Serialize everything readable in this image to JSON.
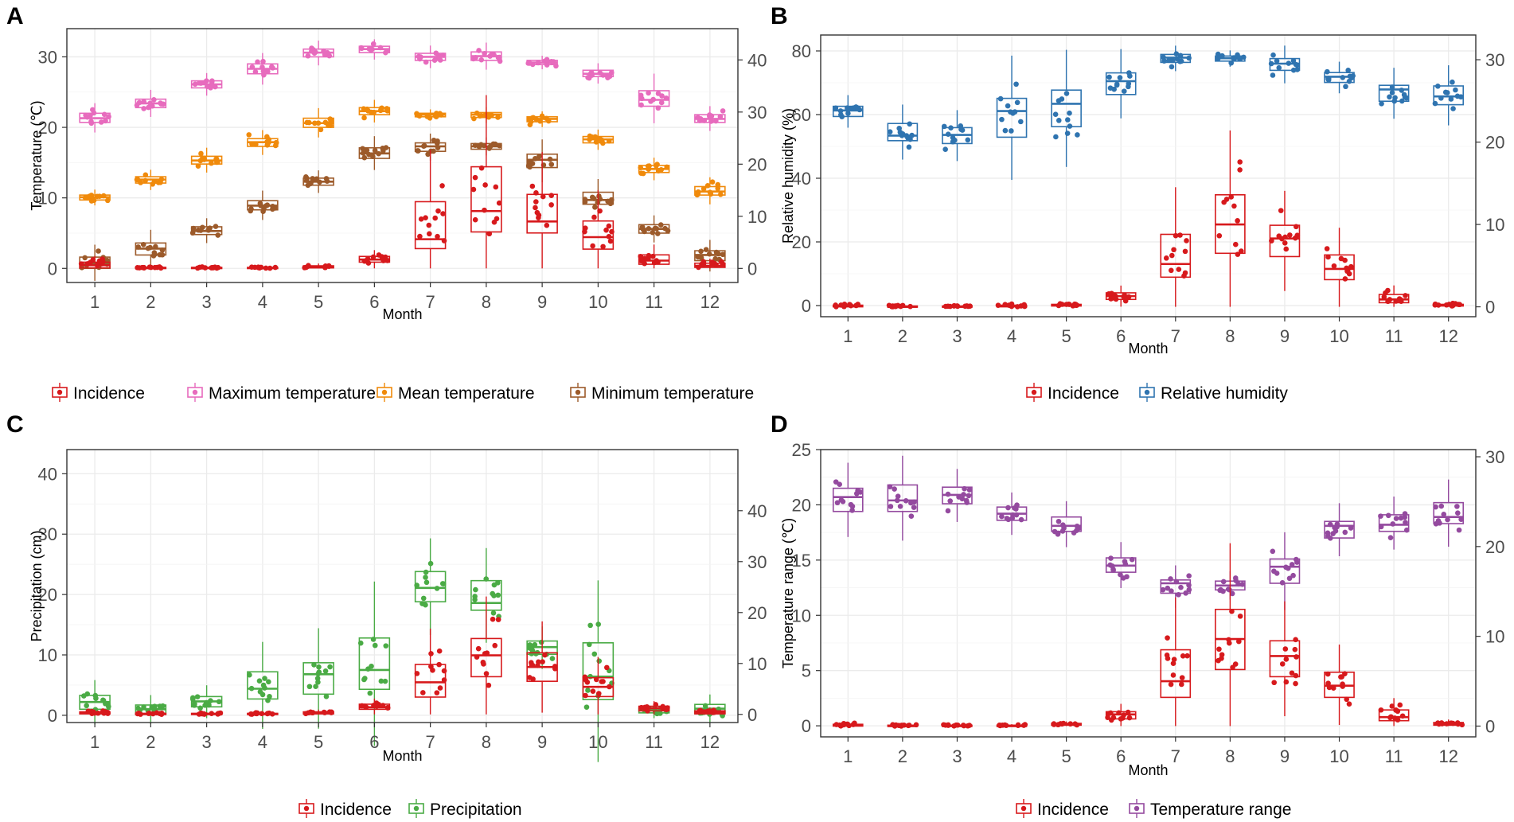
{
  "colors": {
    "incidence": "#d7191c",
    "max_temp": "#e76bbd",
    "mean_temp": "#f08a0b",
    "min_temp": "#9c5a2a",
    "humidity": "#2f74b0",
    "precip": "#4aab45",
    "temp_range": "#944a9f"
  },
  "chart_data": [
    {
      "panel": "A",
      "type": "box",
      "xlabel": "Month",
      "ylabel": "Temperature (℃)",
      "categories": [
        "1",
        "2",
        "3",
        "4",
        "5",
        "6",
        "7",
        "8",
        "9",
        "10",
        "11",
        "12"
      ],
      "ylim": [
        -2,
        34
      ],
      "yticks": [
        0,
        10,
        20,
        30
      ],
      "y2lim": [
        -2.7,
        46
      ],
      "y2ticks": [
        0,
        10,
        20,
        30,
        40
      ],
      "legend": [
        "Incidence",
        "Maximum temperature",
        "Mean temperature",
        "Minimum temperature"
      ],
      "series": [
        {
          "name": "Maximum temperature",
          "color_key": "max_temp",
          "axis": "left",
          "median": [
            21.3,
            23.4,
            26.1,
            28.3,
            30.6,
            31.1,
            30.0,
            30.1,
            29.2,
            27.6,
            23.9,
            21.2
          ],
          "q1": [
            20.7,
            22.8,
            25.6,
            27.6,
            30.0,
            30.6,
            29.5,
            29.5,
            28.9,
            27.2,
            23.0,
            20.7
          ],
          "q3": [
            22.0,
            24.0,
            26.6,
            29.0,
            31.1,
            31.5,
            30.5,
            30.7,
            29.5,
            28.1,
            25.2,
            21.8
          ]
        },
        {
          "name": "Mean temperature",
          "color_key": "mean_temp",
          "axis": "left",
          "median": [
            10.1,
            12.6,
            15.3,
            17.9,
            20.6,
            22.3,
            21.8,
            21.8,
            21.2,
            18.3,
            14.1,
            10.9
          ],
          "q1": [
            9.7,
            12.1,
            14.8,
            17.3,
            20.0,
            21.8,
            21.5,
            21.4,
            20.8,
            17.8,
            13.6,
            10.4
          ],
          "q3": [
            10.4,
            13.0,
            15.9,
            18.4,
            21.3,
            22.8,
            22.0,
            22.1,
            21.5,
            18.7,
            14.6,
            11.6
          ]
        },
        {
          "name": "Minimum temperature",
          "color_key": "min_temp",
          "axis": "left",
          "median": [
            0.6,
            2.8,
            5.3,
            8.9,
            12.3,
            16.3,
            17.3,
            17.3,
            15.4,
            9.7,
            5.6,
            1.9
          ],
          "q1": [
            0.0,
            1.9,
            4.8,
            8.3,
            11.8,
            15.6,
            16.6,
            16.9,
            14.3,
            9.1,
            5.0,
            1.1
          ],
          "q3": [
            1.6,
            3.6,
            5.9,
            9.6,
            12.8,
            17.1,
            17.8,
            17.7,
            16.2,
            10.8,
            6.2,
            2.5
          ]
        },
        {
          "name": "Incidence",
          "color_key": "incidence",
          "axis": "right",
          "median": [
            0.6,
            0.1,
            0.1,
            0.1,
            0.3,
            1.7,
            5.6,
            11.0,
            9.0,
            6.0,
            1.5,
            0.5
          ],
          "q1": [
            0.1,
            0.0,
            0.0,
            0.0,
            0.1,
            1.2,
            3.8,
            7.0,
            6.8,
            3.7,
            0.8,
            0.2
          ],
          "q3": [
            1.2,
            0.2,
            0.2,
            0.2,
            0.5,
            2.3,
            12.8,
            19.5,
            14.2,
            9.1,
            2.6,
            1.0
          ]
        }
      ]
    },
    {
      "panel": "B",
      "type": "box",
      "xlabel": "Month",
      "ylabel": "Relative humidity (%)",
      "categories": [
        "1",
        "2",
        "3",
        "4",
        "5",
        "6",
        "7",
        "8",
        "9",
        "10",
        "11",
        "12"
      ],
      "ylim": [
        -3.5,
        85
      ],
      "yticks": [
        0,
        20,
        40,
        60,
        80
      ],
      "y2lim": [
        -1.2,
        33
      ],
      "y2ticks": [
        0,
        10,
        20,
        30
      ],
      "legend": [
        "Incidence",
        "Relative humidity"
      ],
      "series": [
        {
          "name": "Relative humidity",
          "color_key": "humidity",
          "axis": "left",
          "median": [
            61.3,
            53.4,
            53.6,
            61.1,
            63.4,
            70.5,
            77.9,
            77.7,
            76.0,
            71.9,
            67.9,
            65.7
          ],
          "q1": [
            59.4,
            51.8,
            50.9,
            52.9,
            56.2,
            66.3,
            76.4,
            76.8,
            73.9,
            70.1,
            64.2,
            63.1
          ],
          "q3": [
            62.6,
            57.2,
            55.9,
            65.1,
            67.7,
            73.1,
            78.9,
            78.4,
            77.6,
            73.2,
            69.2,
            69.0
          ]
        },
        {
          "name": "Incidence",
          "color_key": "incidence",
          "axis": "right",
          "median": [
            0.1,
            0.0,
            0.0,
            0.1,
            0.2,
            1.3,
            5.2,
            10.0,
            8.3,
            4.6,
            0.9,
            0.2
          ],
          "q1": [
            0.0,
            0.0,
            0.0,
            0.0,
            0.1,
            0.9,
            3.6,
            6.5,
            6.1,
            3.3,
            0.5,
            0.1
          ],
          "q3": [
            0.2,
            0.1,
            0.1,
            0.2,
            0.3,
            1.7,
            8.8,
            13.6,
            9.9,
            6.3,
            1.5,
            0.3
          ]
        }
      ]
    },
    {
      "panel": "C",
      "type": "box",
      "xlabel": "Month",
      "ylabel": "Precipitation (cm)",
      "categories": [
        "1",
        "2",
        "3",
        "4",
        "5",
        "6",
        "7",
        "8",
        "9",
        "10",
        "11",
        "12"
      ],
      "ylim": [
        -1.2,
        44
      ],
      "yticks": [
        0,
        10,
        20,
        30,
        40
      ],
      "y2lim": [
        -1.6,
        52
      ],
      "y2ticks": [
        0,
        10,
        20,
        30,
        40
      ],
      "legend": [
        "Incidence",
        "Precipitation"
      ],
      "series": [
        {
          "name": "Precipitation",
          "color_key": "precip",
          "axis": "left",
          "median": [
            2.2,
            1.0,
            2.3,
            4.4,
            6.8,
            7.5,
            21.1,
            18.6,
            11.3,
            6.4,
            0.8,
            1.1
          ],
          "q1": [
            1.0,
            0.2,
            1.4,
            2.7,
            3.5,
            4.3,
            18.8,
            17.4,
            10.1,
            2.6,
            0.4,
            0.3
          ],
          "q3": [
            3.3,
            1.7,
            3.1,
            7.2,
            8.7,
            12.8,
            23.8,
            22.3,
            12.3,
            12.0,
            1.2,
            1.8
          ]
        },
        {
          "name": "Incidence",
          "color_key": "incidence",
          "axis": "right",
          "median": [
            0.3,
            0.1,
            0.1,
            0.1,
            0.3,
            1.4,
            6.3,
            11.6,
            9.3,
            5.4,
            1.2,
            0.4
          ],
          "q1": [
            0.1,
            0.0,
            0.0,
            0.0,
            0.1,
            1.0,
            3.4,
            7.4,
            6.5,
            3.5,
            0.7,
            0.1
          ],
          "q3": [
            0.5,
            0.2,
            0.2,
            0.2,
            0.5,
            2.0,
            9.8,
            14.9,
            12.1,
            7.2,
            1.6,
            0.7
          ]
        }
      ]
    },
    {
      "panel": "D",
      "type": "box",
      "xlabel": "Month",
      "ylabel": "Temperature range (℃)",
      "categories": [
        "1",
        "2",
        "3",
        "4",
        "5",
        "6",
        "7",
        "8",
        "9",
        "10",
        "11",
        "12"
      ],
      "ylim": [
        -1,
        25
      ],
      "yticks": [
        0,
        5,
        10,
        15,
        20,
        25
      ],
      "y2lim": [
        -1.2,
        30.8
      ],
      "y2ticks": [
        0,
        10,
        20,
        30
      ],
      "legend": [
        "Incidence",
        "Temperature range"
      ],
      "series": [
        {
          "name": "Temperature range",
          "color_key": "temp_range",
          "axis": "left",
          "median": [
            20.7,
            20.4,
            20.9,
            19.2,
            18.1,
            14.5,
            12.9,
            12.7,
            14.4,
            18.1,
            18.2,
            18.9
          ],
          "q1": [
            19.4,
            19.4,
            20.1,
            18.6,
            17.6,
            13.9,
            12.0,
            12.3,
            12.9,
            17.0,
            17.6,
            18.3
          ],
          "q3": [
            21.5,
            21.8,
            21.6,
            19.8,
            18.9,
            15.2,
            13.2,
            13.1,
            15.1,
            18.5,
            19.1,
            20.2
          ]
        },
        {
          "name": "Incidence",
          "color_key": "incidence",
          "axis": "right",
          "median": [
            0.1,
            0.0,
            0.0,
            0.0,
            0.2,
            1.3,
            5.0,
            9.7,
            7.8,
            4.5,
            1.0,
            0.2
          ],
          "q1": [
            0.0,
            0.0,
            0.0,
            0.0,
            0.1,
            0.8,
            3.2,
            6.3,
            5.5,
            3.2,
            0.6,
            0.1
          ],
          "q3": [
            0.2,
            0.1,
            0.1,
            0.1,
            0.3,
            1.6,
            8.5,
            13.0,
            9.5,
            6.0,
            1.8,
            0.4
          ]
        }
      ]
    }
  ]
}
